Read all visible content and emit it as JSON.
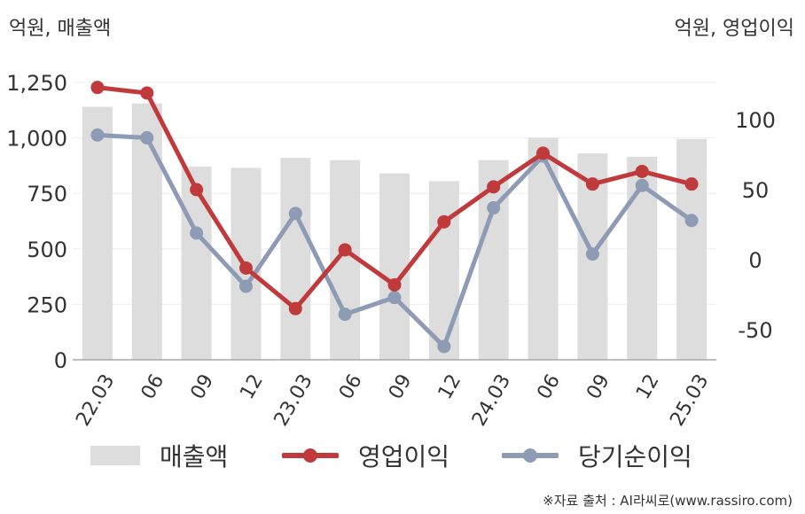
{
  "units": {
    "left": "억원, 매출액",
    "right": "억원, 영업이익"
  },
  "source": "※자료 출처 : AI라씨로(www.rassiro.com)",
  "colors": {
    "revenue": "#dddddd",
    "operating_profit": "#c0393b",
    "net_income": "#8e9bb5",
    "axis": "#aaaaaa",
    "grid": "#eeeeee"
  },
  "chart_data": {
    "type": "bar",
    "categories": [
      "22.03",
      "06",
      "09",
      "12",
      "23.03",
      "06",
      "09",
      "12",
      "24.03",
      "06",
      "09",
      "12",
      "25.03"
    ],
    "left_axis": {
      "ylim": [
        0,
        1250
      ],
      "ticks": [
        "0",
        "250",
        "500",
        "750",
        "1,000",
        "1,250"
      ],
      "tick_values": [
        0,
        250,
        500,
        750,
        1000,
        1250
      ]
    },
    "right_axis": {
      "ylim": [
        -72,
        128
      ],
      "ticks": [
        "-50",
        "0",
        "50",
        "100"
      ],
      "tick_values": [
        -50,
        0,
        50,
        100
      ]
    },
    "series": [
      {
        "name": "매출액",
        "type": "bar",
        "axis": "left",
        "values": [
          1140,
          1155,
          870,
          865,
          910,
          900,
          840,
          805,
          900,
          1000,
          930,
          915,
          995
        ]
      },
      {
        "name": "영업이익",
        "type": "line",
        "axis": "right",
        "values": [
          123,
          119,
          50,
          -6,
          -35,
          7,
          -18,
          27,
          52,
          76,
          54,
          63,
          54
        ]
      },
      {
        "name": "당기순이익",
        "type": "line",
        "axis": "right",
        "values": [
          89,
          87,
          19,
          -19,
          33,
          -39,
          -27,
          -62,
          37,
          74,
          4,
          53,
          28
        ]
      }
    ],
    "grid": true,
    "legend": "bottom"
  }
}
